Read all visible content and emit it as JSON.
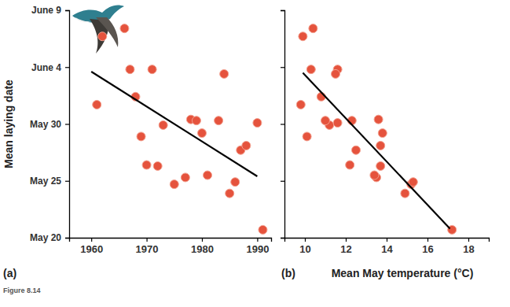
{
  "chart_data": [
    {
      "type": "scatter",
      "panel_label": "(a)",
      "y_label": "Mean laying date",
      "xlim": [
        1956,
        1992.5
      ],
      "xticks": [
        1960,
        1970,
        1980,
        1990
      ],
      "ylim": [
        20,
        40
      ],
      "yticks": [
        {
          "value": 20,
          "label": "May 20"
        },
        {
          "value": 25,
          "label": "May 25"
        },
        {
          "value": 30,
          "label": "May 30"
        },
        {
          "value": 35,
          "label": "June 4"
        },
        {
          "value": 40,
          "label": "June 9"
        }
      ],
      "tick_labels": true,
      "grid": false,
      "series": [
        {
          "type": "scatter",
          "color": "#e5533d",
          "marker": "circle",
          "x": [
            1961,
            1962,
            1966,
            1967,
            1968,
            1969,
            1970,
            1971,
            1972,
            1973,
            1975,
            1977,
            1978,
            1979,
            1980,
            1981,
            1983,
            1984,
            1985,
            1986,
            1987,
            1988,
            1990,
            1991
          ],
          "values": [
            31.7,
            37.7,
            38.4,
            34.8,
            32.4,
            28.9,
            26.4,
            34.8,
            26.3,
            29.9,
            24.7,
            25.3,
            30.4,
            30.3,
            29.2,
            25.5,
            30.3,
            34.4,
            23.9,
            24.9,
            27.7,
            28.1,
            30.1,
            20.7
          ]
        },
        {
          "type": "line",
          "color": "#000000",
          "line_style": "solid",
          "x": [
            1960,
            1990
          ],
          "values": [
            34.6,
            25.4
          ]
        }
      ]
    },
    {
      "type": "scatter",
      "panel_label": "(b)",
      "x_label": "Mean May temperature (°C)",
      "xlim": [
        9,
        19
      ],
      "xticks": [
        10,
        12,
        14,
        16,
        18
      ],
      "ylim": [
        20,
        40
      ],
      "yticks": [
        20,
        25,
        30,
        35,
        40
      ],
      "tick_labels": "x",
      "grid": false,
      "series": [
        {
          "type": "scatter",
          "color": "#e5533d",
          "marker": "circle",
          "x": [
            9.8,
            9.9,
            10.4,
            10.3,
            10.8,
            10.1,
            12.2,
            11.6,
            13.7,
            11.2,
            15.2,
            13.5,
            13.6,
            12.3,
            13.8,
            13.4,
            11.0,
            11.5,
            14.9,
            15.3,
            12.5,
            13.7,
            11.6,
            17.2
          ],
          "values": [
            31.7,
            37.7,
            38.4,
            34.8,
            32.4,
            28.9,
            26.4,
            34.8,
            26.3,
            29.9,
            24.7,
            25.3,
            30.4,
            30.3,
            29.2,
            25.5,
            30.3,
            34.4,
            23.9,
            24.9,
            27.7,
            28.1,
            30.1,
            20.7
          ]
        },
        {
          "type": "line",
          "color": "#000000",
          "line_style": "solid",
          "x": [
            9.9,
            17.1
          ],
          "values": [
            34.5,
            20.8
          ]
        }
      ]
    }
  ],
  "figure_label": "Figure 8.14"
}
